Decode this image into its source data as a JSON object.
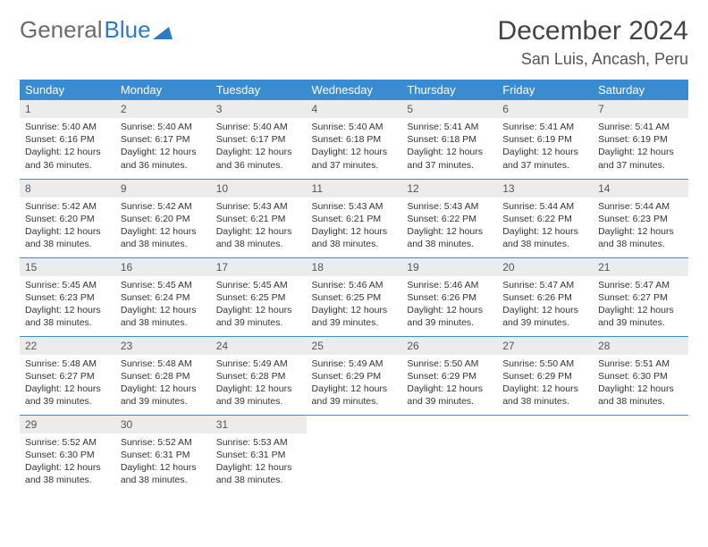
{
  "brand": {
    "part1": "General",
    "part2": "Blue"
  },
  "month": "December 2024",
  "location": "San Luis, Ancash, Peru",
  "weekdays": [
    "Sunday",
    "Monday",
    "Tuesday",
    "Wednesday",
    "Thursday",
    "Friday",
    "Saturday"
  ],
  "colors": {
    "header_bg": "#3b8bd0",
    "header_text": "#ffffff",
    "daybar_bg": "#ececec",
    "row_divider": "#3b8bd0",
    "logo_gray": "#6b6b6b",
    "logo_blue": "#2f7bc3"
  },
  "days": [
    {
      "n": "1",
      "sunrise": "5:40 AM",
      "sunset": "6:16 PM",
      "daylight": "12 hours and 36 minutes."
    },
    {
      "n": "2",
      "sunrise": "5:40 AM",
      "sunset": "6:17 PM",
      "daylight": "12 hours and 36 minutes."
    },
    {
      "n": "3",
      "sunrise": "5:40 AM",
      "sunset": "6:17 PM",
      "daylight": "12 hours and 36 minutes."
    },
    {
      "n": "4",
      "sunrise": "5:40 AM",
      "sunset": "6:18 PM",
      "daylight": "12 hours and 37 minutes."
    },
    {
      "n": "5",
      "sunrise": "5:41 AM",
      "sunset": "6:18 PM",
      "daylight": "12 hours and 37 minutes."
    },
    {
      "n": "6",
      "sunrise": "5:41 AM",
      "sunset": "6:19 PM",
      "daylight": "12 hours and 37 minutes."
    },
    {
      "n": "7",
      "sunrise": "5:41 AM",
      "sunset": "6:19 PM",
      "daylight": "12 hours and 37 minutes."
    },
    {
      "n": "8",
      "sunrise": "5:42 AM",
      "sunset": "6:20 PM",
      "daylight": "12 hours and 38 minutes."
    },
    {
      "n": "9",
      "sunrise": "5:42 AM",
      "sunset": "6:20 PM",
      "daylight": "12 hours and 38 minutes."
    },
    {
      "n": "10",
      "sunrise": "5:43 AM",
      "sunset": "6:21 PM",
      "daylight": "12 hours and 38 minutes."
    },
    {
      "n": "11",
      "sunrise": "5:43 AM",
      "sunset": "6:21 PM",
      "daylight": "12 hours and 38 minutes."
    },
    {
      "n": "12",
      "sunrise": "5:43 AM",
      "sunset": "6:22 PM",
      "daylight": "12 hours and 38 minutes."
    },
    {
      "n": "13",
      "sunrise": "5:44 AM",
      "sunset": "6:22 PM",
      "daylight": "12 hours and 38 minutes."
    },
    {
      "n": "14",
      "sunrise": "5:44 AM",
      "sunset": "6:23 PM",
      "daylight": "12 hours and 38 minutes."
    },
    {
      "n": "15",
      "sunrise": "5:45 AM",
      "sunset": "6:23 PM",
      "daylight": "12 hours and 38 minutes."
    },
    {
      "n": "16",
      "sunrise": "5:45 AM",
      "sunset": "6:24 PM",
      "daylight": "12 hours and 38 minutes."
    },
    {
      "n": "17",
      "sunrise": "5:45 AM",
      "sunset": "6:25 PM",
      "daylight": "12 hours and 39 minutes."
    },
    {
      "n": "18",
      "sunrise": "5:46 AM",
      "sunset": "6:25 PM",
      "daylight": "12 hours and 39 minutes."
    },
    {
      "n": "19",
      "sunrise": "5:46 AM",
      "sunset": "6:26 PM",
      "daylight": "12 hours and 39 minutes."
    },
    {
      "n": "20",
      "sunrise": "5:47 AM",
      "sunset": "6:26 PM",
      "daylight": "12 hours and 39 minutes."
    },
    {
      "n": "21",
      "sunrise": "5:47 AM",
      "sunset": "6:27 PM",
      "daylight": "12 hours and 39 minutes."
    },
    {
      "n": "22",
      "sunrise": "5:48 AM",
      "sunset": "6:27 PM",
      "daylight": "12 hours and 39 minutes."
    },
    {
      "n": "23",
      "sunrise": "5:48 AM",
      "sunset": "6:28 PM",
      "daylight": "12 hours and 39 minutes."
    },
    {
      "n": "24",
      "sunrise": "5:49 AM",
      "sunset": "6:28 PM",
      "daylight": "12 hours and 39 minutes."
    },
    {
      "n": "25",
      "sunrise": "5:49 AM",
      "sunset": "6:29 PM",
      "daylight": "12 hours and 39 minutes."
    },
    {
      "n": "26",
      "sunrise": "5:50 AM",
      "sunset": "6:29 PM",
      "daylight": "12 hours and 39 minutes."
    },
    {
      "n": "27",
      "sunrise": "5:50 AM",
      "sunset": "6:29 PM",
      "daylight": "12 hours and 38 minutes."
    },
    {
      "n": "28",
      "sunrise": "5:51 AM",
      "sunset": "6:30 PM",
      "daylight": "12 hours and 38 minutes."
    },
    {
      "n": "29",
      "sunrise": "5:52 AM",
      "sunset": "6:30 PM",
      "daylight": "12 hours and 38 minutes."
    },
    {
      "n": "30",
      "sunrise": "5:52 AM",
      "sunset": "6:31 PM",
      "daylight": "12 hours and 38 minutes."
    },
    {
      "n": "31",
      "sunrise": "5:53 AM",
      "sunset": "6:31 PM",
      "daylight": "12 hours and 38 minutes."
    }
  ],
  "labels": {
    "sunrise": "Sunrise: ",
    "sunset": "Sunset: ",
    "daylight": "Daylight: "
  },
  "layout": {
    "start_weekday": 0,
    "rows": 5,
    "cols": 7
  }
}
